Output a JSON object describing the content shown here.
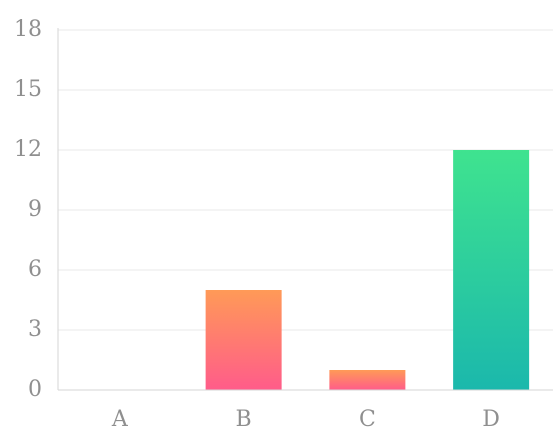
{
  "chart_data": {
    "type": "bar",
    "categories": [
      "A",
      "B",
      "C",
      "D"
    ],
    "values": [
      0,
      5,
      1,
      12
    ],
    "title": "",
    "xlabel": "",
    "ylabel": "",
    "ylim": [
      0,
      18
    ],
    "yticks": [
      0,
      3,
      6,
      9,
      12,
      15,
      18
    ],
    "grid": true,
    "legend": "none",
    "colors": {
      "warm_top": "#ff9a57",
      "warm_bottom": "#ff5c8a",
      "cool_top": "#3fe38f",
      "cool_bottom": "#1bb8ac",
      "gridline": "#e8e8e8",
      "axis": "#d6d6d6",
      "tick_text": "#8f8f8f"
    },
    "bar_styles": [
      "warm",
      "warm",
      "warm",
      "cool"
    ]
  }
}
